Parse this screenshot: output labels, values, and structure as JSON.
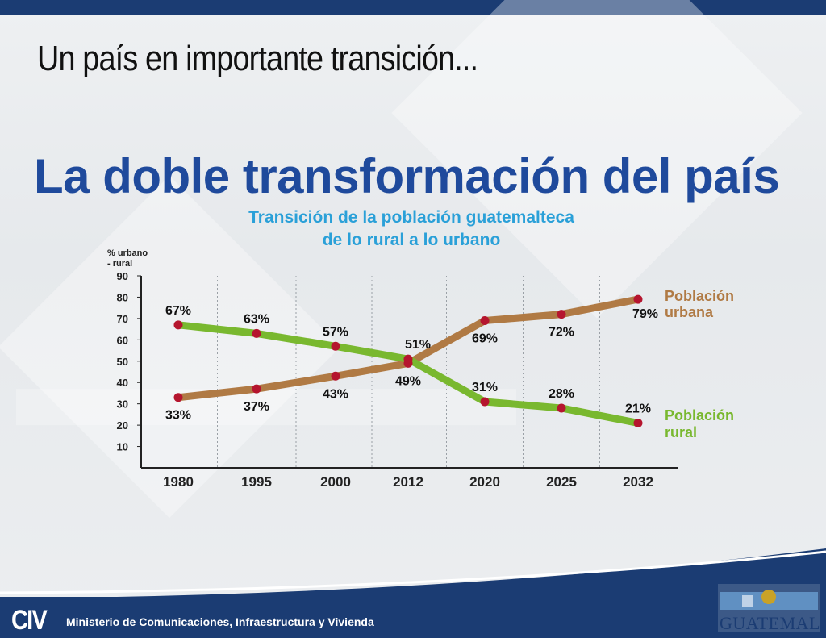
{
  "slide": {
    "title": "Un país en importante transición...",
    "headline": "La doble transformación del país"
  },
  "footer": {
    "logo_text": "CIV",
    "ministry": "Ministerio de Comunicaciones, Infraestructura y Vivienda",
    "brand_text": "GUATEMALA"
  },
  "colors": {
    "urban": "#b07a44",
    "rural": "#79b82f",
    "point": "#b5152e",
    "title_blue": "#2aa0d8",
    "headline_blue": "#1f4a9c",
    "bar_blue": "#1b3c73"
  },
  "chart_data": {
    "type": "line",
    "title": [
      "Transición de la población guatemalteca",
      "de lo rural a lo urbano"
    ],
    "ylabel": [
      "% urbano",
      "- rural"
    ],
    "xlabel": "",
    "categories": [
      "1980",
      "1995",
      "2000",
      "2012",
      "2020",
      "2025",
      "2032"
    ],
    "ylim": [
      0,
      90
    ],
    "yticks": [
      10,
      20,
      30,
      40,
      50,
      60,
      70,
      80,
      90
    ],
    "grid": "vertical dashed",
    "series": [
      {
        "name": [
          "Población",
          "urbana"
        ],
        "key": "urban",
        "values": [
          33,
          37,
          43,
          49,
          69,
          72,
          79
        ],
        "labels": [
          "33%",
          "37%",
          "43%",
          "49%",
          "69%",
          "72%",
          "79%"
        ],
        "label_side": [
          "below",
          "below",
          "below",
          "below",
          "below",
          "below",
          "below"
        ]
      },
      {
        "name": [
          "Población",
          "rural"
        ],
        "key": "rural",
        "values": [
          67,
          63,
          57,
          51,
          31,
          28,
          21
        ],
        "labels": [
          "67%",
          "63%",
          "57%",
          "51%",
          "31%",
          "28%",
          "21%"
        ],
        "label_side": [
          "above",
          "above",
          "above",
          "above",
          "above",
          "above",
          "above"
        ]
      }
    ]
  }
}
